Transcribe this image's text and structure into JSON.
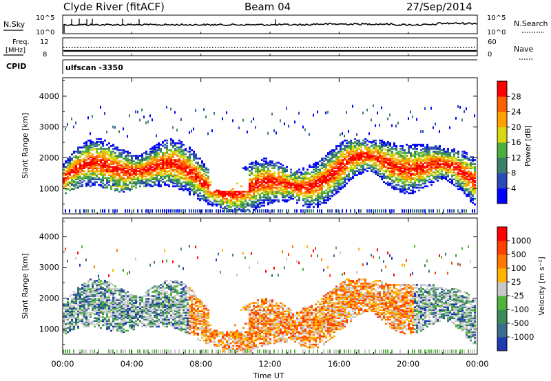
{
  "header": {
    "station": "Clyde River (fitACF)",
    "beam": "Beam 04",
    "date": "27/Sep/2014"
  },
  "top_panels": {
    "nsky_label": "N.Sky",
    "nsky_ticks": [
      "10^5",
      "10^0"
    ],
    "nsearch_label": "N.Search",
    "freq_label_1": "Freq.",
    "freq_label_2": "[MHz]",
    "freq_ticks": [
      "12",
      "8"
    ],
    "nave_label": "Nave",
    "nave_ticks": [
      "60",
      "0"
    ],
    "right_ticks_nsky": [
      "10^5",
      "10^0"
    ],
    "cpid_label": "CPID",
    "cpid_value": "ulfscan -3350"
  },
  "chart_data": [
    {
      "type": "heatmap",
      "panel": "power",
      "ylabel": "Slant Range [km]",
      "ylim": [
        180,
        4600
      ],
      "y_ticks": [
        1000,
        2000,
        3000,
        4000
      ],
      "colorbar": {
        "label": "Power [dB]",
        "ticks": [
          4,
          8,
          12,
          16,
          20,
          24,
          28
        ],
        "colors": [
          "#0000ff",
          "#2c4ab8",
          "#3a7f6a",
          "#4cae3c",
          "#d8d810",
          "#ffa000",
          "#ff6000",
          "#ff0000"
        ]
      }
    },
    {
      "type": "heatmap",
      "panel": "velocity",
      "ylabel": "Slant Range [km]",
      "ylim": [
        180,
        4600
      ],
      "y_ticks": [
        1000,
        2000,
        3000,
        4000
      ],
      "colorbar": {
        "label": "Velocity [m s⁻¹]",
        "ticks": [
          "1000",
          "500",
          "100",
          "25",
          "-25",
          "-100",
          "-500",
          "-1000"
        ],
        "colors": [
          "#1e3cb0",
          "#3c6e8c",
          "#3c8c5a",
          "#50b43c",
          "#c8c8c8",
          "#ffb400",
          "#ff7800",
          "#ff4000",
          "#ff0000"
        ]
      }
    }
  ],
  "x_axis": {
    "label": "Time UT",
    "ticks": [
      "00:00",
      "04:00",
      "08:00",
      "12:00",
      "16:00",
      "20:00",
      "00:00"
    ]
  }
}
